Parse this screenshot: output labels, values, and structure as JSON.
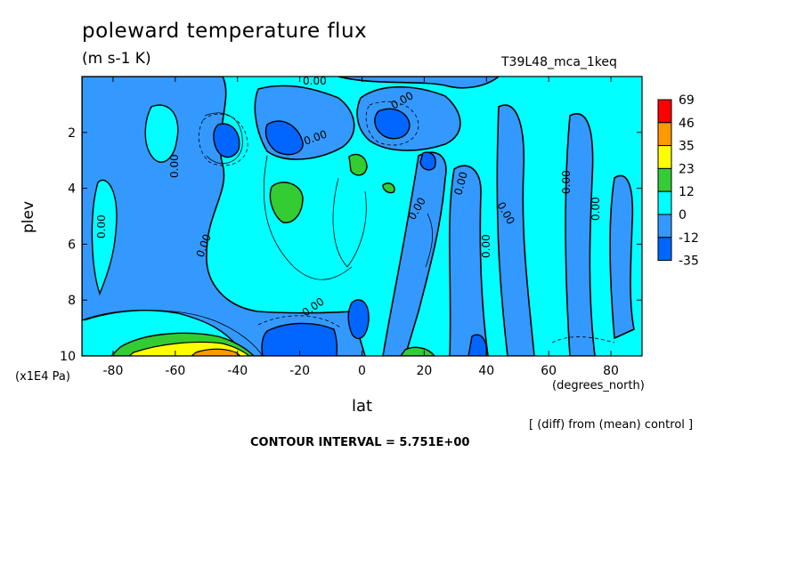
{
  "chart_data": {
    "type": "heatmap",
    "title": "poleward temperature flux",
    "units": "(m s-1 K)",
    "run_label": "T39L48_mca_1keq",
    "xlabel": "lat",
    "x_units_label": "(degrees_north)",
    "ylabel": "plev",
    "y_units_label": "(x1E4 Pa)",
    "xlim": [
      -90,
      90
    ],
    "ylim": [
      0,
      10
    ],
    "y_inverted": true,
    "x_ticks": [
      -80,
      -60,
      -40,
      -20,
      0,
      20,
      40,
      60,
      80
    ],
    "x_tick_labels": [
      "-80",
      "-60",
      "-40",
      "-20",
      "0",
      "20",
      "40",
      "60",
      "80"
    ],
    "y_ticks": [
      2,
      4,
      6,
      8,
      10
    ],
    "y_tick_labels": [
      "2",
      "4",
      "6",
      "8",
      "10"
    ],
    "colorbar": {
      "levels": [
        "69",
        "46",
        "35",
        "23",
        "12",
        "0",
        "-12",
        "-35"
      ],
      "colors": [
        "#ff0000",
        "#ff9900",
        "#ffff00",
        "#33cc33",
        "#00ffff",
        "#3399ff",
        "#0066ff"
      ]
    },
    "contour_labels": [
      "0.00",
      "0.00",
      "0.00",
      "0.00",
      "0.00",
      "0.00",
      "0.00",
      "0.00",
      "0.00",
      "0.00",
      "0.00",
      "0.00",
      "0.00"
    ],
    "contour_interval_text": "CONTOUR INTERVAL = 5.751E+00",
    "footnote": "[ (diff) from (mean) control ]"
  }
}
